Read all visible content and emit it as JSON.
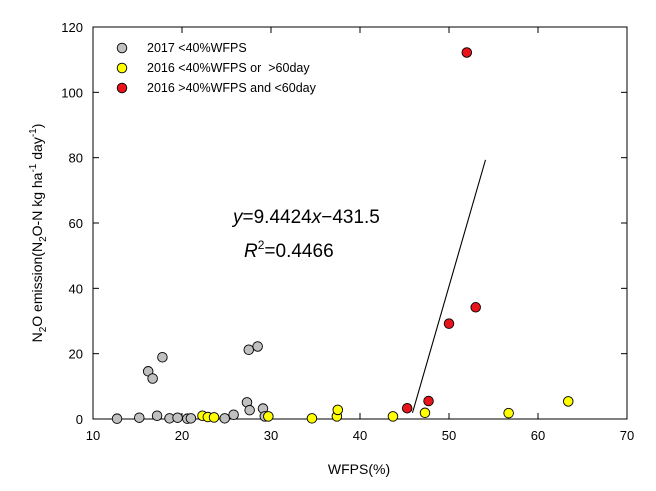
{
  "chart_data": {
    "type": "scatter",
    "xlabel": "WFPS(%)",
    "ylabel": {
      "prefix": "N",
      "sub1": "2",
      "mid": "O emission(N",
      "sub2": "2",
      "mid2": "O-N kg ha",
      "sup1": "-1",
      "mid3": " day",
      "sup2": "-1",
      "suffix": ")"
    },
    "xlim": [
      10,
      70
    ],
    "ylim": [
      0,
      120
    ],
    "xticks": [
      10,
      20,
      30,
      40,
      50,
      60,
      70
    ],
    "yticks": [
      0,
      20,
      40,
      60,
      80,
      100,
      120
    ],
    "series": [
      {
        "name": "2017 <40%WFPS",
        "color": "#c0c0c0",
        "points": [
          [
            12.7,
            0.1
          ],
          [
            15.2,
            0.4
          ],
          [
            16.2,
            14.6
          ],
          [
            16.7,
            12.4
          ],
          [
            17.2,
            1.0
          ],
          [
            17.8,
            18.9
          ],
          [
            18.6,
            0.2
          ],
          [
            19.5,
            0.4
          ],
          [
            20.6,
            0.1
          ],
          [
            21.0,
            0.2
          ],
          [
            24.8,
            0.2
          ],
          [
            25.8,
            1.3
          ],
          [
            27.3,
            5.1
          ],
          [
            27.5,
            21.2
          ],
          [
            27.6,
            2.7
          ],
          [
            28.5,
            22.2
          ],
          [
            29.1,
            3.2
          ],
          [
            29.3,
            0.8
          ]
        ]
      },
      {
        "name": "2016 <40%WFPS or  >60day",
        "color": "#ffff00",
        "points": [
          [
            22.3,
            1.0
          ],
          [
            22.9,
            0.6
          ],
          [
            23.6,
            0.5
          ],
          [
            29.7,
            0.8
          ],
          [
            34.6,
            0.2
          ],
          [
            37.4,
            0.8
          ],
          [
            37.5,
            2.8
          ],
          [
            43.7,
            0.8
          ],
          [
            47.3,
            1.9
          ],
          [
            56.7,
            1.8
          ],
          [
            63.4,
            5.4
          ]
        ]
      },
      {
        "name": "2016 >40%WFPS and <60day",
        "color": "#e8141c",
        "points": [
          [
            45.3,
            3.3
          ],
          [
            47.7,
            5.5
          ],
          [
            50.0,
            29.2
          ],
          [
            52.0,
            112.2
          ],
          [
            53.0,
            34.2
          ]
        ]
      }
    ],
    "regression": {
      "slope": 9.4424,
      "intercept": -431.5,
      "x_range": [
        45.9,
        54.1
      ],
      "equation": {
        "y": "y",
        "eq1": "=9.4424",
        "x": "x",
        "eq2": "−431.5"
      },
      "r2": {
        "r": "R",
        "sup": "2",
        "val": "=0.4466"
      }
    },
    "legend_position": "top-left",
    "grid": false
  }
}
